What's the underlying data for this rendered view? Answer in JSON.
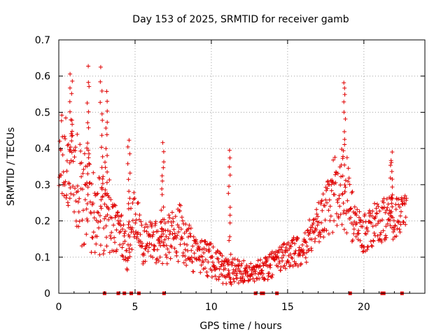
{
  "chart_data": {
    "type": "scatter",
    "title": "Day 153 of 2025, SRMTID for receiver gamb",
    "xlabel": "GPS time / hours",
    "ylabel": "SRMTID / TECUs",
    "xlim": [
      0,
      24
    ],
    "ylim": [
      0,
      0.7
    ],
    "x_ticks": [
      "0",
      "5",
      "10",
      "15",
      "20"
    ],
    "y_ticks": [
      "0",
      "0.1",
      "0.2",
      "0.3",
      "0.4",
      "0.5",
      "0.6",
      "0.7"
    ],
    "grid": true,
    "legend": "none",
    "marker": "+",
    "color": "#e00000",
    "series": [
      {
        "name": "SRMTID",
        "envelope": [
          {
            "x": 0.0,
            "y": 0.4,
            "spread": 0.1
          },
          {
            "x": 0.5,
            "y": 0.38,
            "spread": 0.14
          },
          {
            "x": 1.0,
            "y": 0.34,
            "spread": 0.15
          },
          {
            "x": 1.5,
            "y": 0.26,
            "spread": 0.13
          },
          {
            "x": 2.0,
            "y": 0.25,
            "spread": 0.15
          },
          {
            "x": 2.5,
            "y": 0.2,
            "spread": 0.1
          },
          {
            "x": 3.0,
            "y": 0.26,
            "spread": 0.15
          },
          {
            "x": 3.5,
            "y": 0.18,
            "spread": 0.08
          },
          {
            "x": 4.0,
            "y": 0.17,
            "spread": 0.06
          },
          {
            "x": 4.5,
            "y": 0.12,
            "spread": 0.06
          },
          {
            "x": 5.0,
            "y": 0.22,
            "spread": 0.08
          },
          {
            "x": 5.5,
            "y": 0.13,
            "spread": 0.06
          },
          {
            "x": 6.0,
            "y": 0.14,
            "spread": 0.06
          },
          {
            "x": 7.0,
            "y": 0.14,
            "spread": 0.07
          },
          {
            "x": 8.0,
            "y": 0.17,
            "spread": 0.08
          },
          {
            "x": 9.0,
            "y": 0.1,
            "spread": 0.05
          },
          {
            "x": 10.0,
            "y": 0.09,
            "spread": 0.05
          },
          {
            "x": 11.0,
            "y": 0.06,
            "spread": 0.04
          },
          {
            "x": 12.0,
            "y": 0.06,
            "spread": 0.03
          },
          {
            "x": 13.0,
            "y": 0.06,
            "spread": 0.03
          },
          {
            "x": 14.0,
            "y": 0.08,
            "spread": 0.04
          },
          {
            "x": 15.0,
            "y": 0.11,
            "spread": 0.04
          },
          {
            "x": 16.0,
            "y": 0.12,
            "spread": 0.05
          },
          {
            "x": 17.0,
            "y": 0.19,
            "spread": 0.06
          },
          {
            "x": 18.0,
            "y": 0.27,
            "spread": 0.1
          },
          {
            "x": 18.7,
            "y": 0.3,
            "spread": 0.13
          },
          {
            "x": 19.5,
            "y": 0.18,
            "spread": 0.06
          },
          {
            "x": 20.0,
            "y": 0.17,
            "spread": 0.06
          },
          {
            "x": 21.0,
            "y": 0.2,
            "spread": 0.06
          },
          {
            "x": 22.0,
            "y": 0.21,
            "spread": 0.06
          },
          {
            "x": 22.8,
            "y": 0.23,
            "spread": 0.04
          }
        ],
        "peaks": [
          {
            "x": 0.8,
            "y": 0.6
          },
          {
            "x": 1.9,
            "y": 0.62
          },
          {
            "x": 2.8,
            "y": 0.62
          },
          {
            "x": 3.1,
            "y": 0.55
          },
          {
            "x": 4.6,
            "y": 0.42
          },
          {
            "x": 6.8,
            "y": 0.41
          },
          {
            "x": 11.2,
            "y": 0.4
          },
          {
            "x": 18.7,
            "y": 0.59
          },
          {
            "x": 21.8,
            "y": 0.39
          }
        ],
        "x_end": 22.8
      }
    ],
    "data_gaps_hours": [
      3.0,
      3.9,
      4.3,
      4.75,
      5.25,
      6.9,
      12.9,
      13.3,
      13.4,
      14.3,
      19.1,
      21.2,
      21.3,
      22.5
    ]
  }
}
